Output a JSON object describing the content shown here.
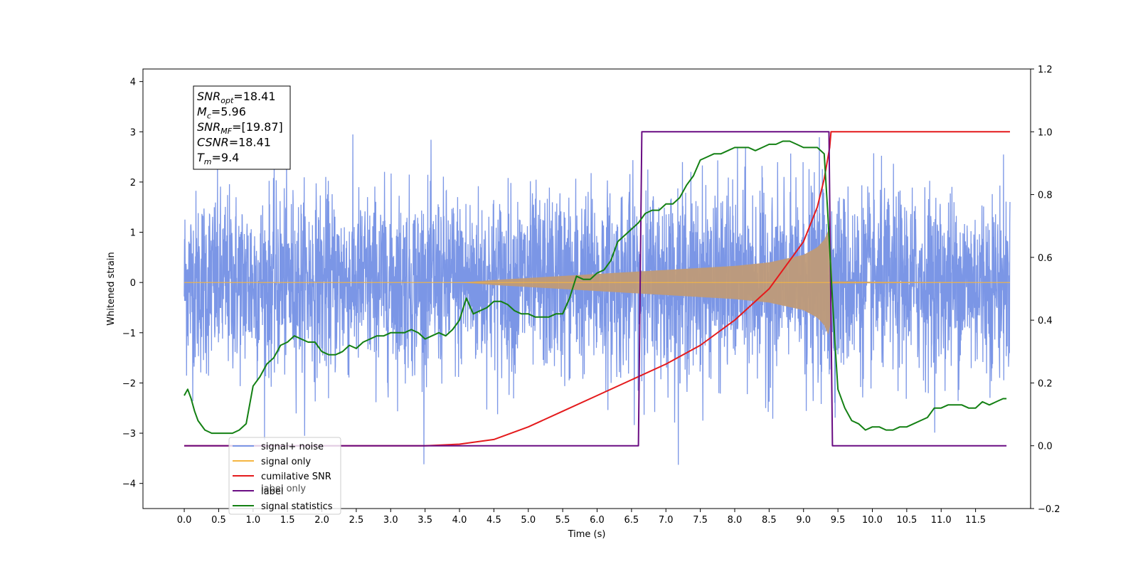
{
  "chart_data": {
    "type": "line",
    "xlabel": "Time (s)",
    "ylabel_left": "Whitened strain",
    "ylabel_right": "",
    "xlim": [
      -0.6,
      12.3
    ],
    "ylim_left": [
      -4.5,
      4.25
    ],
    "ylim_right": [
      -0.2,
      1.2
    ],
    "x_ticks": [
      0.0,
      0.5,
      1.0,
      1.5,
      2.0,
      2.5,
      3.0,
      3.5,
      4.0,
      4.5,
      5.0,
      5.5,
      6.0,
      6.5,
      7.0,
      7.5,
      8.0,
      8.5,
      9.0,
      9.5,
      10.0,
      10.5,
      11.0,
      11.5
    ],
    "x_tick_labels": [
      "0.0",
      "0.5",
      "1.0",
      "1.5",
      "2.0",
      "2.5",
      "3.0",
      "3.5",
      "4.0",
      "4.5",
      "5.0",
      "5.5",
      "6.0",
      "6.5",
      "7.0",
      "7.5",
      "8.0",
      "8.5",
      "9.0",
      "9.5",
      "10.0",
      "10.5",
      "11.0",
      "11.5"
    ],
    "y_left_ticks": [
      4,
      3,
      2,
      1,
      0,
      -1,
      -2,
      -3,
      -4
    ],
    "y_left_tick_labels": [
      "4",
      "3",
      "2",
      "1",
      "0",
      "−1",
      "−2",
      "−3",
      "−4"
    ],
    "y_right_ticks": [
      1.2,
      1.0,
      0.8,
      0.6,
      0.4,
      0.2,
      0.0,
      -0.2
    ],
    "y_right_tick_labels": [
      "1.2",
      "1.0",
      "0.8",
      "0.6",
      "0.4",
      "0.2",
      "0.0",
      "−0.2"
    ],
    "grid": false,
    "legend_position": "lower-left",
    "annotation": [
      {
        "main": "SNR",
        "sub": "opt",
        "value": "=18.41"
      },
      {
        "main": "M",
        "sub": "c",
        "value": "=5.96"
      },
      {
        "main": "SNR",
        "sub": "MF",
        "value": "=[19.87]"
      },
      {
        "main": "CSNR",
        "sub": "",
        "value": "=18.41"
      },
      {
        "main": "T",
        "sub": "m",
        "value": "=9.4"
      }
    ],
    "series": [
      {
        "name": "signal+ noise",
        "color": "#7b96e6",
        "axis": "left",
        "kind": "noise",
        "x_range": [
          0.0,
          12.0
        ],
        "noise_std": 0.9,
        "approx_range": [
          -4.1,
          3.9
        ]
      },
      {
        "name": "signal only",
        "color": "#f5b642",
        "fill_color": "#bf9a78",
        "axis": "left",
        "kind": "chirp_envelope",
        "x": [
          0.0,
          4.0,
          4.5,
          5.0,
          5.5,
          6.0,
          6.5,
          7.0,
          7.5,
          8.0,
          8.5,
          9.0,
          9.2,
          9.3,
          9.38,
          9.42,
          12.0
        ],
        "amplitude": [
          0.0,
          0.0,
          0.05,
          0.09,
          0.13,
          0.17,
          0.21,
          0.25,
          0.29,
          0.33,
          0.4,
          0.55,
          0.7,
          0.85,
          1.1,
          0.02,
          0.0
        ]
      },
      {
        "name": "cumilative SNR",
        "color": "#e41a1c",
        "axis": "right",
        "kind": "line",
        "x": [
          0.0,
          3.5,
          4.0,
          4.5,
          5.0,
          5.5,
          6.0,
          6.5,
          7.0,
          7.5,
          8.0,
          8.5,
          9.0,
          9.2,
          9.3,
          9.38,
          9.4,
          12.0
        ],
        "y": [
          0.0,
          0.0,
          0.005,
          0.02,
          0.06,
          0.11,
          0.16,
          0.21,
          0.26,
          0.32,
          0.4,
          0.5,
          0.65,
          0.76,
          0.85,
          0.95,
          1.0,
          1.0
        ]
      },
      {
        "name": "label",
        "color": "#6a0d83",
        "axis": "right",
        "kind": "step",
        "x": [
          0.0,
          6.6,
          6.65,
          9.37,
          9.42,
          11.95
        ],
        "y": [
          0.0,
          0.0,
          1.0,
          1.0,
          0.0,
          0.0
        ]
      },
      {
        "name": "signal statistics",
        "color": "#138013",
        "axis": "right",
        "kind": "line",
        "x": [
          0.0,
          0.05,
          0.1,
          0.15,
          0.2,
          0.3,
          0.4,
          0.5,
          0.6,
          0.7,
          0.8,
          0.9,
          1.0,
          1.1,
          1.2,
          1.3,
          1.4,
          1.5,
          1.6,
          1.7,
          1.8,
          1.9,
          2.0,
          2.1,
          2.2,
          2.3,
          2.4,
          2.5,
          2.6,
          2.7,
          2.8,
          2.9,
          3.0,
          3.1,
          3.2,
          3.3,
          3.4,
          3.5,
          3.6,
          3.7,
          3.8,
          3.9,
          4.0,
          4.1,
          4.2,
          4.3,
          4.4,
          4.5,
          4.6,
          4.7,
          4.8,
          4.9,
          5.0,
          5.1,
          5.2,
          5.3,
          5.4,
          5.5,
          5.6,
          5.7,
          5.8,
          5.9,
          6.0,
          6.1,
          6.2,
          6.3,
          6.4,
          6.5,
          6.6,
          6.7,
          6.8,
          6.9,
          7.0,
          7.1,
          7.2,
          7.3,
          7.4,
          7.5,
          7.6,
          7.7,
          7.8,
          7.9,
          8.0,
          8.1,
          8.2,
          8.3,
          8.4,
          8.5,
          8.6,
          8.7,
          8.8,
          8.9,
          9.0,
          9.1,
          9.2,
          9.3,
          9.35,
          9.4,
          9.45,
          9.5,
          9.6,
          9.7,
          9.8,
          9.9,
          10.0,
          10.1,
          10.2,
          10.3,
          10.4,
          10.5,
          10.6,
          10.7,
          10.8,
          10.9,
          11.0,
          11.1,
          11.2,
          11.3,
          11.4,
          11.5,
          11.6,
          11.7,
          11.8,
          11.9,
          11.95
        ],
        "y": [
          0.16,
          0.18,
          0.15,
          0.11,
          0.08,
          0.05,
          0.04,
          0.04,
          0.04,
          0.04,
          0.05,
          0.07,
          0.19,
          0.22,
          0.26,
          0.28,
          0.32,
          0.33,
          0.35,
          0.34,
          0.33,
          0.33,
          0.3,
          0.29,
          0.29,
          0.3,
          0.32,
          0.31,
          0.33,
          0.34,
          0.35,
          0.35,
          0.36,
          0.36,
          0.36,
          0.37,
          0.36,
          0.34,
          0.35,
          0.36,
          0.35,
          0.37,
          0.4,
          0.47,
          0.42,
          0.43,
          0.44,
          0.46,
          0.46,
          0.45,
          0.43,
          0.42,
          0.42,
          0.41,
          0.41,
          0.41,
          0.42,
          0.42,
          0.47,
          0.54,
          0.53,
          0.53,
          0.55,
          0.56,
          0.59,
          0.65,
          0.67,
          0.69,
          0.71,
          0.74,
          0.75,
          0.75,
          0.77,
          0.77,
          0.79,
          0.83,
          0.86,
          0.91,
          0.92,
          0.93,
          0.93,
          0.94,
          0.95,
          0.95,
          0.95,
          0.94,
          0.95,
          0.96,
          0.96,
          0.97,
          0.97,
          0.96,
          0.95,
          0.95,
          0.95,
          0.93,
          0.75,
          0.55,
          0.35,
          0.18,
          0.12,
          0.08,
          0.07,
          0.05,
          0.06,
          0.06,
          0.05,
          0.05,
          0.06,
          0.06,
          0.07,
          0.08,
          0.09,
          0.12,
          0.12,
          0.13,
          0.13,
          0.13,
          0.12,
          0.12,
          0.14,
          0.13,
          0.14,
          0.15,
          0.15
        ]
      }
    ],
    "legend_underlay_text": "label only"
  }
}
